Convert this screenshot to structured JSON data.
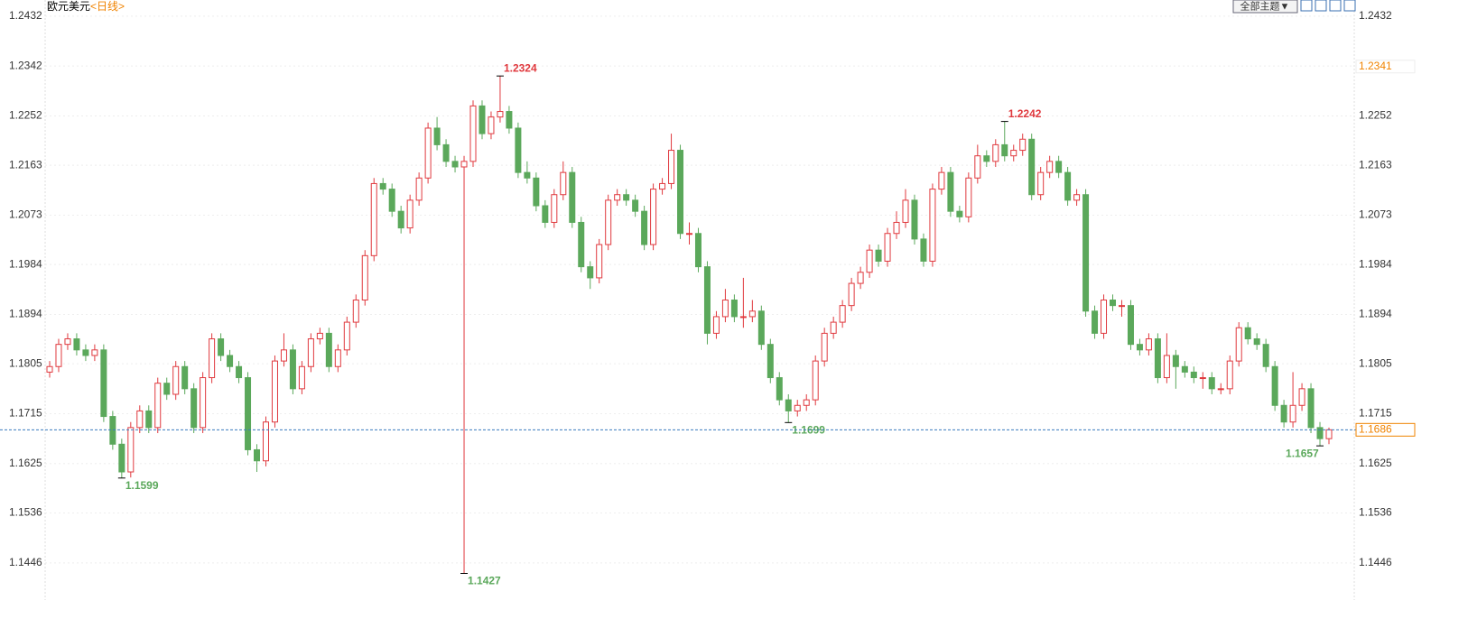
{
  "chart_data": {
    "type": "candlestick",
    "title": "欧元美元",
    "subtitle": "<日线>",
    "button": "全部主题▼",
    "up_color": "#e0393e",
    "down_color": "#5ba85b",
    "label_color": "#f08300",
    "ylim": [
      1.1379,
      1.2461
    ],
    "yticks": [
      1.2432,
      1.2342,
      1.2252,
      1.2163,
      1.2073,
      1.1984,
      1.1894,
      1.1805,
      1.1715,
      1.1625,
      1.1536,
      1.1446
    ],
    "grid": true,
    "open": [
      1.179,
      1.18,
      1.184,
      1.185,
      1.183,
      1.182,
      1.183,
      1.171,
      1.166,
      1.161,
      1.169,
      1.172,
      1.169,
      1.177,
      1.175,
      1.18,
      1.176,
      1.169,
      1.178,
      1.185,
      1.182,
      1.18,
      1.178,
      1.165,
      1.163,
      1.17,
      1.181,
      1.183,
      1.176,
      1.18,
      1.185,
      1.186,
      1.18,
      1.183,
      1.188,
      1.192,
      1.2,
      1.213,
      1.212,
      1.208,
      1.205,
      1.21,
      1.214,
      1.223,
      1.22,
      1.217,
      1.216,
      1.217,
      1.227,
      1.222,
      1.225,
      1.226,
      1.223,
      1.215,
      1.214,
      1.209,
      1.206,
      1.211,
      1.215,
      1.206,
      1.198,
      1.196,
      1.202,
      1.21,
      1.211,
      1.21,
      1.208,
      1.202,
      1.212,
      1.213,
      1.219,
      1.204,
      1.204,
      1.198,
      1.186,
      1.189,
      1.192,
      1.189,
      1.189,
      1.19,
      1.184,
      1.178,
      1.174,
      1.172,
      1.173,
      1.174,
      1.181,
      1.186,
      1.188,
      1.191,
      1.195,
      1.197,
      1.201,
      1.199,
      1.204,
      1.206,
      1.21,
      1.203,
      1.199,
      1.212,
      1.215,
      1.208,
      1.207,
      1.214,
      1.218,
      1.217,
      1.22,
      1.218,
      1.219,
      1.221,
      1.211,
      1.215,
      1.217,
      1.215,
      1.21,
      1.211,
      1.19,
      1.186,
      1.192,
      1.191,
      1.191,
      1.184,
      1.183,
      1.185,
      1.178,
      1.182,
      1.18,
      1.179,
      1.178,
      1.178,
      1.176,
      1.176,
      1.181,
      1.187,
      1.185,
      1.184,
      1.18,
      1.173,
      1.17,
      1.173,
      1.176,
      1.169,
      1.167
    ],
    "high": [
      1.181,
      1.185,
      1.186,
      1.186,
      1.184,
      1.184,
      1.184,
      1.172,
      1.167,
      1.17,
      1.173,
      1.173,
      1.178,
      1.178,
      1.181,
      1.181,
      1.177,
      1.179,
      1.186,
      1.186,
      1.183,
      1.181,
      1.179,
      1.166,
      1.171,
      1.182,
      1.186,
      1.184,
      1.181,
      1.186,
      1.187,
      1.187,
      1.184,
      1.189,
      1.193,
      1.201,
      1.214,
      1.214,
      1.213,
      1.209,
      1.211,
      1.215,
      1.224,
      1.225,
      1.221,
      1.218,
      1.218,
      1.228,
      1.228,
      1.226,
      1.2324,
      1.227,
      1.224,
      1.217,
      1.215,
      1.21,
      1.212,
      1.217,
      1.216,
      1.207,
      1.199,
      1.203,
      1.211,
      1.212,
      1.212,
      1.211,
      1.209,
      1.213,
      1.214,
      1.222,
      1.22,
      1.206,
      1.205,
      1.199,
      1.19,
      1.194,
      1.193,
      1.196,
      1.192,
      1.191,
      1.185,
      1.179,
      1.175,
      1.174,
      1.175,
      1.182,
      1.187,
      1.189,
      1.192,
      1.196,
      1.198,
      1.202,
      1.202,
      1.205,
      1.208,
      1.212,
      1.211,
      1.204,
      1.213,
      1.216,
      1.216,
      1.209,
      1.215,
      1.22,
      1.219,
      1.221,
      1.2242,
      1.22,
      1.222,
      1.222,
      1.216,
      1.218,
      1.218,
      1.216,
      1.212,
      1.212,
      1.191,
      1.193,
      1.193,
      1.192,
      1.192,
      1.185,
      1.186,
      1.186,
      1.186,
      1.183,
      1.181,
      1.18,
      1.179,
      1.179,
      1.177,
      1.182,
      1.188,
      1.188,
      1.186,
      1.185,
      1.181,
      1.174,
      1.179,
      1.177,
      1.177,
      1.17,
      1.169
    ],
    "low": [
      1.178,
      1.179,
      1.183,
      1.182,
      1.181,
      1.181,
      1.17,
      1.165,
      1.1599,
      1.16,
      1.168,
      1.168,
      1.168,
      1.174,
      1.174,
      1.175,
      1.168,
      1.168,
      1.177,
      1.181,
      1.179,
      1.177,
      1.164,
      1.161,
      1.162,
      1.169,
      1.18,
      1.175,
      1.175,
      1.179,
      1.184,
      1.179,
      1.179,
      1.182,
      1.187,
      1.191,
      1.199,
      1.211,
      1.207,
      1.204,
      1.204,
      1.209,
      1.213,
      1.219,
      1.216,
      1.215,
      1.1427,
      1.216,
      1.221,
      1.221,
      1.224,
      1.222,
      1.214,
      1.213,
      1.208,
      1.205,
      1.205,
      1.21,
      1.205,
      1.197,
      1.194,
      1.195,
      1.201,
      1.209,
      1.209,
      1.207,
      1.201,
      1.201,
      1.211,
      1.212,
      1.203,
      1.202,
      1.197,
      1.184,
      1.185,
      1.188,
      1.188,
      1.187,
      1.188,
      1.183,
      1.177,
      1.173,
      1.1699,
      1.171,
      1.172,
      1.173,
      1.18,
      1.185,
      1.187,
      1.19,
      1.194,
      1.196,
      1.198,
      1.198,
      1.203,
      1.205,
      1.202,
      1.198,
      1.198,
      1.211,
      1.207,
      1.206,
      1.206,
      1.213,
      1.216,
      1.216,
      1.217,
      1.217,
      1.218,
      1.21,
      1.21,
      1.214,
      1.214,
      1.209,
      1.209,
      1.189,
      1.185,
      1.185,
      1.19,
      1.189,
      1.183,
      1.182,
      1.182,
      1.177,
      1.177,
      1.176,
      1.178,
      1.177,
      1.176,
      1.175,
      1.175,
      1.175,
      1.18,
      1.184,
      1.183,
      1.179,
      1.172,
      1.169,
      1.169,
      1.172,
      1.168,
      1.1657,
      1.166
    ],
    "close": [
      1.18,
      1.184,
      1.185,
      1.183,
      1.182,
      1.183,
      1.171,
      1.166,
      1.161,
      1.169,
      1.172,
      1.169,
      1.177,
      1.175,
      1.18,
      1.176,
      1.169,
      1.178,
      1.185,
      1.182,
      1.18,
      1.178,
      1.165,
      1.163,
      1.17,
      1.181,
      1.183,
      1.176,
      1.18,
      1.185,
      1.186,
      1.18,
      1.183,
      1.188,
      1.192,
      1.2,
      1.213,
      1.212,
      1.208,
      1.205,
      1.21,
      1.214,
      1.223,
      1.22,
      1.217,
      1.216,
      1.217,
      1.227,
      1.222,
      1.225,
      1.226,
      1.223,
      1.215,
      1.214,
      1.209,
      1.206,
      1.211,
      1.215,
      1.206,
      1.198,
      1.196,
      1.202,
      1.21,
      1.211,
      1.21,
      1.208,
      1.202,
      1.212,
      1.213,
      1.219,
      1.204,
      1.204,
      1.198,
      1.186,
      1.189,
      1.192,
      1.189,
      1.189,
      1.19,
      1.184,
      1.178,
      1.174,
      1.172,
      1.173,
      1.174,
      1.181,
      1.186,
      1.188,
      1.191,
      1.195,
      1.197,
      1.201,
      1.199,
      1.204,
      1.206,
      1.21,
      1.203,
      1.199,
      1.212,
      1.215,
      1.208,
      1.207,
      1.214,
      1.218,
      1.217,
      1.22,
      1.218,
      1.219,
      1.221,
      1.211,
      1.215,
      1.217,
      1.215,
      1.21,
      1.211,
      1.19,
      1.186,
      1.192,
      1.191,
      1.191,
      1.184,
      1.183,
      1.185,
      1.178,
      1.182,
      1.18,
      1.179,
      1.178,
      1.178,
      1.176,
      1.176,
      1.181,
      1.187,
      1.185,
      1.184,
      1.18,
      1.173,
      1.17,
      1.173,
      1.176,
      1.169,
      1.167,
      1.1686
    ],
    "high_labels": [
      1.2324,
      1.2242
    ],
    "low_labels": [
      1.1599,
      1.1427,
      1.1699,
      1.1657
    ],
    "last_price": 1.1686,
    "marker_price": 1.2341
  }
}
